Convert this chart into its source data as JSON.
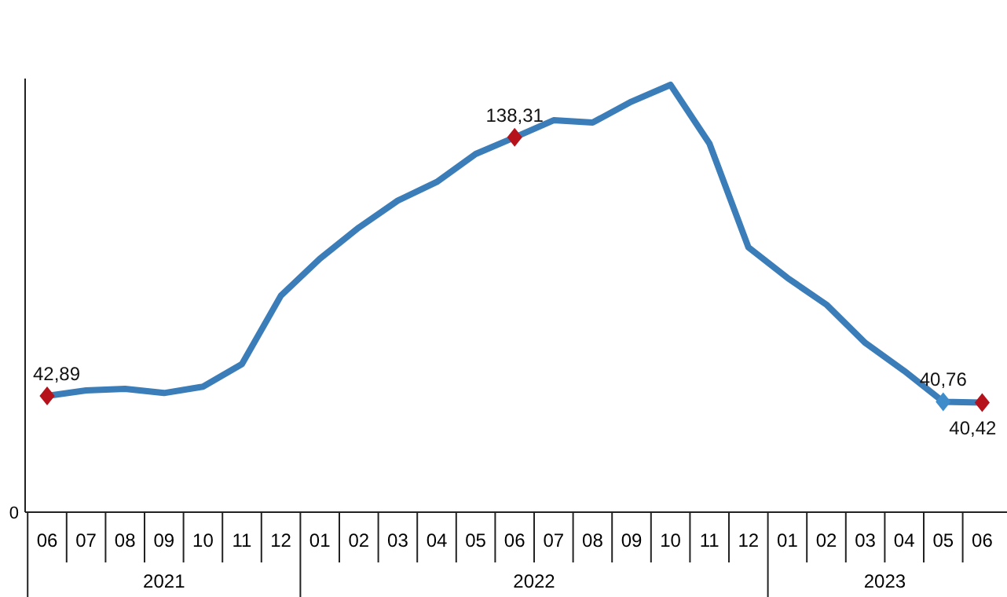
{
  "chart_data": {
    "type": "line",
    "categories": [
      "06",
      "07",
      "08",
      "09",
      "10",
      "11",
      "12",
      "01",
      "02",
      "03",
      "04",
      "05",
      "06",
      "07",
      "08",
      "09",
      "10",
      "11",
      "12",
      "01",
      "02",
      "03",
      "04",
      "05",
      "06"
    ],
    "series": [
      {
        "color": "#3b7db8",
        "marker": "none",
        "line_style": "solid",
        "values": [
          42.89,
          44.92,
          45.52,
          43.96,
          46.31,
          54.62,
          79.89,
          93.53,
          105.01,
          114.97,
          121.82,
          132.16,
          138.31,
          144.61,
          143.75,
          151.5,
          157.69,
          136.02,
          97.72,
          86.46,
          76.61,
          62.43,
          52.11,
          40.76,
          40.42
        ]
      },
      {
        "type": "scatter",
        "marker": "diamond",
        "values": [
          42.89,
          null,
          null,
          null,
          null,
          null,
          null,
          null,
          null,
          null,
          null,
          null,
          138.31,
          null,
          null,
          null,
          null,
          null,
          null,
          null,
          null,
          null,
          null,
          40.76,
          40.42
        ],
        "colors": [
          "#b5121b",
          null,
          null,
          null,
          null,
          null,
          null,
          null,
          null,
          null,
          null,
          null,
          "#b5121b",
          null,
          null,
          null,
          null,
          null,
          null,
          null,
          null,
          null,
          null,
          "#3f8ccb",
          "#b5121b"
        ],
        "value_labels": [
          "42,89",
          null,
          null,
          null,
          null,
          null,
          null,
          null,
          null,
          null,
          null,
          null,
          "138,31",
          null,
          null,
          null,
          null,
          null,
          null,
          null,
          null,
          null,
          null,
          "40,76",
          "40,42"
        ]
      }
    ],
    "ylim": [
      0,
      160
    ],
    "annotations": [
      "0",
      "2021",
      "2022",
      "2023"
    ]
  }
}
